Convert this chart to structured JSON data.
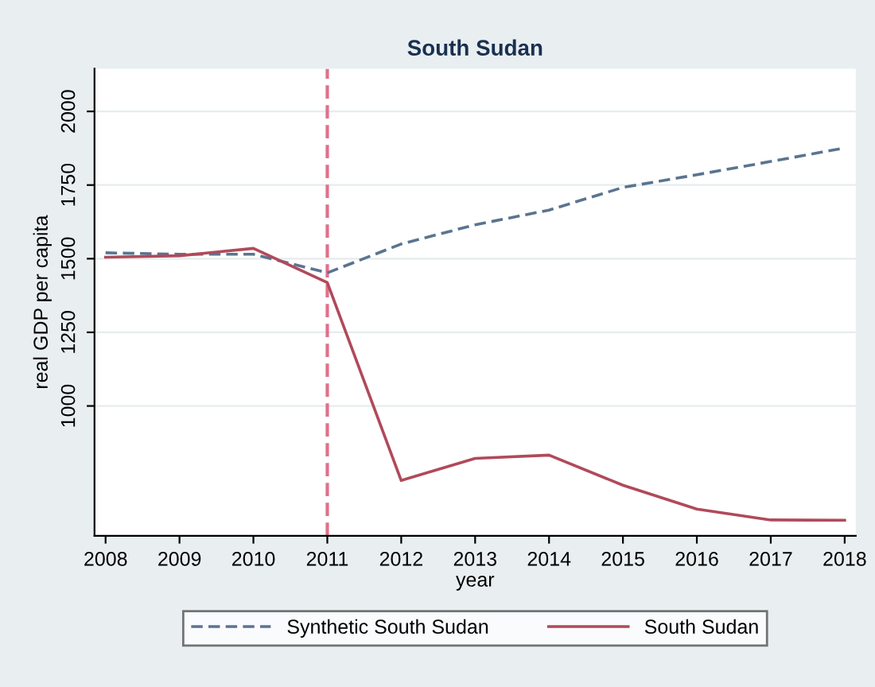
{
  "chart_data": {
    "type": "line",
    "title": "South Sudan",
    "xlabel": "year",
    "ylabel": "real GDP per capita",
    "x": [
      2008,
      2009,
      2010,
      2011,
      2012,
      2013,
      2014,
      2015,
      2016,
      2017,
      2018
    ],
    "series": [
      {
        "name": "Synthetic South Sudan",
        "color": "#5a7490",
        "line_style": "dashed",
        "values": [
          1520,
          1515,
          1515,
          1452,
          1550,
          1615,
          1665,
          1742,
          1785,
          1830,
          1876
        ]
      },
      {
        "name": "South Sudan",
        "color": "#b04a5a",
        "line_style": "solid",
        "values": [
          1505,
          1510,
          1535,
          1419,
          747,
          822,
          833,
          731,
          650,
          613,
          612
        ]
      }
    ],
    "xlim": [
      2007.85,
      2018.15
    ],
    "ylim": [
      559,
      2145
    ],
    "xticks": [
      2008,
      2009,
      2010,
      2011,
      2012,
      2013,
      2014,
      2015,
      2016,
      2017,
      2018
    ],
    "yticks": [
      1000,
      1250,
      1500,
      1750,
      2000
    ],
    "ref_lines": [
      {
        "axis": "x",
        "value": 2011,
        "color": "#e0708a",
        "line_style": "dashed"
      }
    ],
    "grid": "y",
    "legend": "bottom",
    "marker": "none"
  }
}
